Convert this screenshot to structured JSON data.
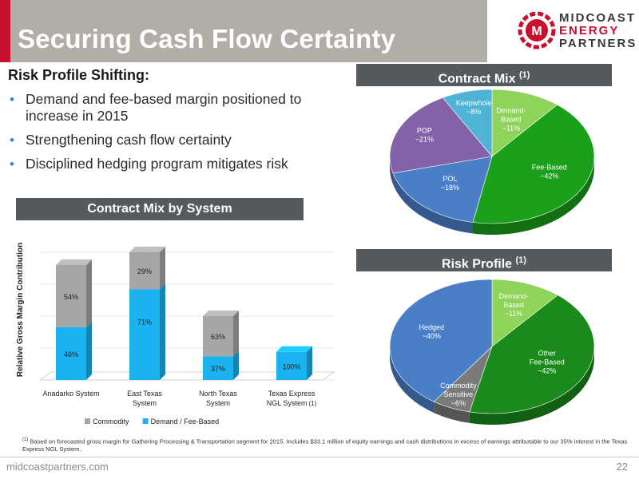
{
  "header": {
    "title": "Securing Cash Flow Certainty",
    "logo": {
      "line1": "MIDCOAST",
      "line2": "ENERGY",
      "line3": "PARTNERS",
      "mark": "M"
    }
  },
  "intro": {
    "heading": "Risk Profile Shifting:",
    "bullets": [
      "Demand and fee-based margin positioned to increase in 2015",
      "Strengthening cash flow certainty",
      "Disciplined hedging program mitigates risk"
    ]
  },
  "sections": {
    "contract_mix_by_system": "Contract Mix by System",
    "contract_mix": "Contract Mix",
    "contract_mix_note": "(1)",
    "risk_profile": "Risk Profile",
    "risk_profile_note": "(1)"
  },
  "chart_data": [
    {
      "type": "bar",
      "stacked": true,
      "ylabel": "Relative Gross Margin Contribution",
      "categories": [
        "Anadarko System",
        "East Texas System",
        "North Texas System",
        "Texas Express NGL System"
      ],
      "category_note": "(1)",
      "series": [
        {
          "name": "Demand / Fee-Based",
          "values": [
            46,
            71,
            37,
            100
          ],
          "color": "#1ab2f0"
        },
        {
          "name": "Commodity",
          "values": [
            54,
            29,
            63,
            0
          ],
          "color": "#a6a6a6"
        }
      ],
      "value_labels": {
        "Demand / Fee-Based": [
          "46%",
          "71%",
          "37%",
          "100%"
        ],
        "Commodity": [
          "54%",
          "29%",
          "63%",
          ""
        ]
      },
      "relative_heights": [
        0.9,
        1.0,
        0.5,
        0.22
      ],
      "legend_position": "bottom"
    },
    {
      "type": "pie",
      "slices": [
        {
          "label": "Demand-Based",
          "display": "~11%",
          "value": 11,
          "color": "#8fd45a"
        },
        {
          "label": "Fee-Based",
          "display": "~42%",
          "value": 42,
          "color": "#1aa01a"
        },
        {
          "label": "POL",
          "display": "~18%",
          "value": 18,
          "color": "#4a7fc8"
        },
        {
          "label": "POP",
          "display": "~21%",
          "value": 21,
          "color": "#8462a8"
        },
        {
          "label": "Keepwhole",
          "display": "~8%",
          "value": 8,
          "color": "#4fb3d6"
        }
      ]
    },
    {
      "type": "pie",
      "slices": [
        {
          "label": "Demand-Based",
          "display": "~11%",
          "value": 11,
          "color": "#8fd45a"
        },
        {
          "label": "Other Fee-Based",
          "display": "~42%",
          "value": 42,
          "color": "#1a8a1a"
        },
        {
          "label": "Commodity Sensitive",
          "display": "~6%",
          "value": 6,
          "color": "#7a7a7a"
        },
        {
          "label": "Hedged",
          "display": "~40%",
          "value": 40,
          "color": "#4a7fc8"
        }
      ]
    }
  ],
  "footnote": {
    "marker": "(1)",
    "text": "Based on forecasted gross margin for Gathering Processing & Transportation segment for 2015. Includes $33.1 million of equity earnings and cash distributions in excess of earnings attributable to our 35% interest in the Texas Express NGL System."
  },
  "footer": {
    "url": "midcoastpartners.com",
    "page": "22"
  }
}
